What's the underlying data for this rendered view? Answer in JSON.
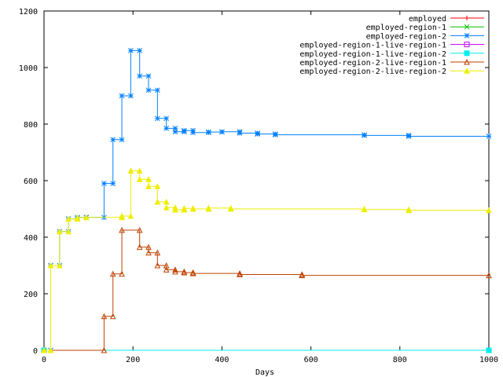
{
  "chart_data": {
    "type": "line",
    "xlabel": "Days",
    "ylabel": "",
    "xlim": [
      0,
      1000
    ],
    "ylim": [
      0,
      1200
    ],
    "xticks": [
      0,
      200,
      400,
      600,
      800,
      1000
    ],
    "yticks": [
      0,
      200,
      400,
      600,
      800,
      1000,
      1200
    ],
    "grid": false,
    "legend_position": "top-right",
    "series": [
      {
        "name": "employed",
        "color": "#ff0000",
        "marker": "plus",
        "points": [
          [
            0,
            0
          ],
          [
            1000,
            0
          ]
        ]
      },
      {
        "name": "employed-region-1",
        "color": "#00c000",
        "marker": "cross",
        "points": [
          [
            0,
            0
          ],
          [
            1000,
            0
          ]
        ]
      },
      {
        "name": "employed-region-2",
        "color": "#0080ff",
        "marker": "star",
        "points": [
          [
            0,
            0
          ],
          [
            15,
            0
          ],
          [
            15,
            300
          ],
          [
            35,
            300
          ],
          [
            35,
            420
          ],
          [
            55,
            420
          ],
          [
            55,
            465
          ],
          [
            75,
            465
          ],
          [
            75,
            470
          ],
          [
            95,
            470
          ],
          [
            95,
            470
          ],
          [
            135,
            470
          ],
          [
            135,
            590
          ],
          [
            155,
            590
          ],
          [
            155,
            745
          ],
          [
            175,
            745
          ],
          [
            175,
            900
          ],
          [
            195,
            900
          ],
          [
            195,
            1060
          ],
          [
            215,
            1060
          ],
          [
            215,
            970
          ],
          [
            235,
            970
          ],
          [
            235,
            920
          ],
          [
            255,
            920
          ],
          [
            255,
            820
          ],
          [
            275,
            820
          ],
          [
            275,
            785
          ],
          [
            295,
            785
          ],
          [
            295,
            773
          ],
          [
            315,
            773
          ],
          [
            315,
            777
          ],
          [
            335,
            777
          ],
          [
            335,
            770
          ],
          [
            370,
            770
          ],
          [
            370,
            772
          ],
          [
            400,
            772
          ],
          [
            400,
            773
          ],
          [
            440,
            773
          ],
          [
            440,
            768
          ],
          [
            480,
            768
          ],
          [
            480,
            765
          ],
          [
            520,
            765
          ],
          [
            520,
            762
          ],
          [
            720,
            762
          ],
          [
            720,
            760
          ],
          [
            820,
            760
          ],
          [
            820,
            757
          ],
          [
            1000,
            757
          ]
        ]
      },
      {
        "name": "employed-region-1-live-region-1",
        "color": "#c000ff",
        "marker": "box",
        "points": [
          [
            0,
            0
          ],
          [
            1000,
            0
          ]
        ]
      },
      {
        "name": "employed-region-1-live-region-2",
        "color": "#00eeee",
        "marker": "filled-box",
        "points": [
          [
            0,
            0
          ],
          [
            1000,
            0
          ]
        ]
      },
      {
        "name": "employed-region-2-live-region-1",
        "color": "#c04000",
        "marker": "triangle",
        "points": [
          [
            0,
            0
          ],
          [
            135,
            0
          ],
          [
            135,
            120
          ],
          [
            155,
            120
          ],
          [
            155,
            270
          ],
          [
            175,
            270
          ],
          [
            175,
            425
          ],
          [
            215,
            425
          ],
          [
            215,
            365
          ],
          [
            235,
            365
          ],
          [
            235,
            345
          ],
          [
            255,
            345
          ],
          [
            255,
            300
          ],
          [
            275,
            300
          ],
          [
            275,
            285
          ],
          [
            295,
            285
          ],
          [
            295,
            278
          ],
          [
            315,
            278
          ],
          [
            315,
            275
          ],
          [
            335,
            275
          ],
          [
            335,
            272
          ],
          [
            440,
            272
          ],
          [
            440,
            268
          ],
          [
            580,
            268
          ],
          [
            580,
            265
          ],
          [
            1000,
            265
          ]
        ]
      },
      {
        "name": "employed-region-2-live-region-2",
        "color": "#eeee00",
        "marker": "filled-triangle",
        "points": [
          [
            0,
            0
          ],
          [
            15,
            0
          ],
          [
            15,
            300
          ],
          [
            35,
            300
          ],
          [
            35,
            420
          ],
          [
            55,
            420
          ],
          [
            55,
            465
          ],
          [
            75,
            465
          ],
          [
            75,
            470
          ],
          [
            95,
            470
          ],
          [
            95,
            470
          ],
          [
            175,
            470
          ],
          [
            175,
            475
          ],
          [
            195,
            475
          ],
          [
            195,
            635
          ],
          [
            215,
            635
          ],
          [
            215,
            605
          ],
          [
            235,
            605
          ],
          [
            235,
            580
          ],
          [
            255,
            580
          ],
          [
            255,
            525
          ],
          [
            275,
            525
          ],
          [
            275,
            505
          ],
          [
            295,
            505
          ],
          [
            295,
            497
          ],
          [
            315,
            497
          ],
          [
            315,
            502
          ],
          [
            335,
            502
          ],
          [
            335,
            500
          ],
          [
            370,
            500
          ],
          [
            370,
            503
          ],
          [
            420,
            503
          ],
          [
            420,
            500
          ],
          [
            720,
            500
          ],
          [
            720,
            498
          ],
          [
            820,
            498
          ],
          [
            820,
            495
          ],
          [
            1000,
            495
          ]
        ]
      }
    ]
  }
}
